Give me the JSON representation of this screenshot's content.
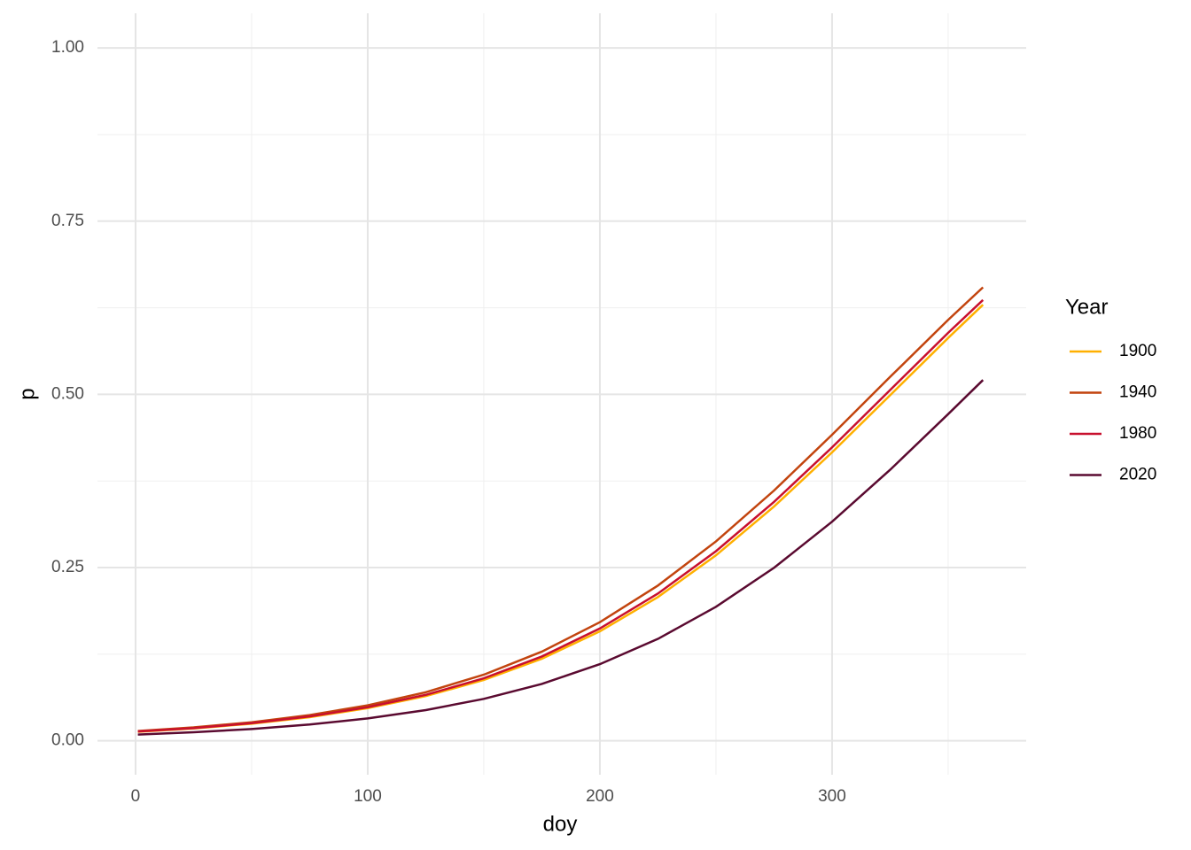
{
  "chart_data": {
    "type": "line",
    "x_label": "doy",
    "y_label": "p",
    "legend_title": "Year",
    "legend_position": "right",
    "x": [
      1,
      25,
      50,
      75,
      100,
      125,
      150,
      175,
      200,
      225,
      250,
      275,
      300,
      325,
      350,
      365
    ],
    "series": [
      {
        "name": "1900",
        "color": "#ffb000",
        "values": [
          0.013,
          0.0178,
          0.0247,
          0.0341,
          0.0471,
          0.0645,
          0.0878,
          0.1185,
          0.158,
          0.2075,
          0.2677,
          0.3381,
          0.4163,
          0.4988,
          0.5814,
          0.6293
        ]
      },
      {
        "name": "1940",
        "color": "#c2440e",
        "values": [
          0.0141,
          0.0193,
          0.0268,
          0.0371,
          0.0512,
          0.0701,
          0.0954,
          0.1287,
          0.1712,
          0.2241,
          0.2878,
          0.3612,
          0.4417,
          0.5252,
          0.6075,
          0.6545
        ]
      },
      {
        "name": "1980",
        "color": "#c8102e",
        "values": [
          0.0134,
          0.0183,
          0.0254,
          0.0352,
          0.0484,
          0.0663,
          0.0902,
          0.1217,
          0.1621,
          0.2125,
          0.2737,
          0.3448,
          0.4235,
          0.5062,
          0.5888,
          0.6362
        ]
      },
      {
        "name": "2020",
        "color": "#5a0a30",
        "values": [
          0.009,
          0.0123,
          0.017,
          0.0235,
          0.0323,
          0.0443,
          0.0605,
          0.0821,
          0.1106,
          0.1471,
          0.1934,
          0.2497,
          0.3162,
          0.3911,
          0.4715,
          0.5207
        ]
      }
    ],
    "xlim": [
      -16.4,
      383.6
    ],
    "ylim": [
      -0.049,
      1.05
    ],
    "xticks": [
      0,
      100,
      200,
      300
    ],
    "yticks": [
      {
        "value": 0,
        "label": "0.00"
      },
      0.25,
      {
        "value": 0.5,
        "label": "0.50"
      },
      0.75,
      {
        "value": 1,
        "label": "1.00"
      }
    ],
    "x_minor_breaks": [
      50,
      150,
      250,
      350
    ],
    "y_minor_breaks": [
      0.125,
      0.375,
      0.625,
      0.875
    ],
    "grid": true
  }
}
